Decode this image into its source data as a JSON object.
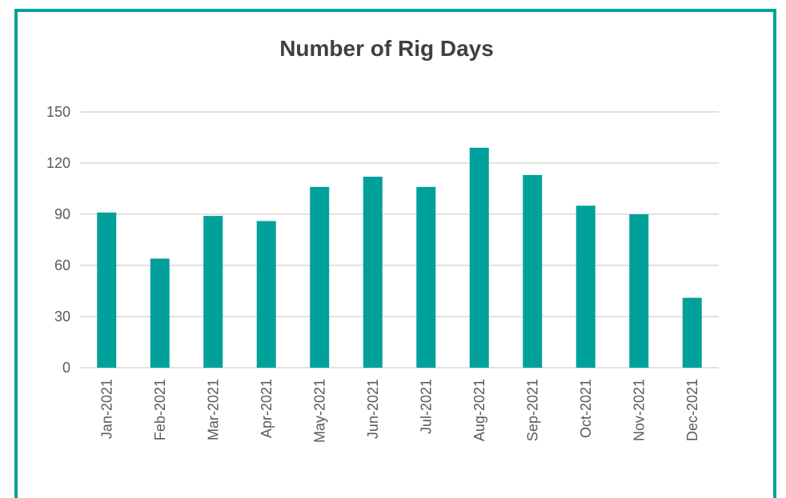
{
  "chart_data": {
    "type": "bar",
    "title": "Number of Rig Days",
    "categories": [
      "Jan-2021",
      "Feb-2021",
      "Mar-2021",
      "Apr-2021",
      "May-2021",
      "Jun-2021",
      "Jul-2021",
      "Aug-2021",
      "Sep-2021",
      "Oct-2021",
      "Nov-2021",
      "Dec-2021"
    ],
    "values": [
      91,
      64,
      89,
      86,
      106,
      112,
      106,
      129,
      113,
      95,
      90,
      41
    ],
    "color": "#00a19a",
    "ylim": [
      0,
      150
    ],
    "yticks": [
      0,
      30,
      60,
      90,
      120,
      150
    ],
    "grid": true
  }
}
